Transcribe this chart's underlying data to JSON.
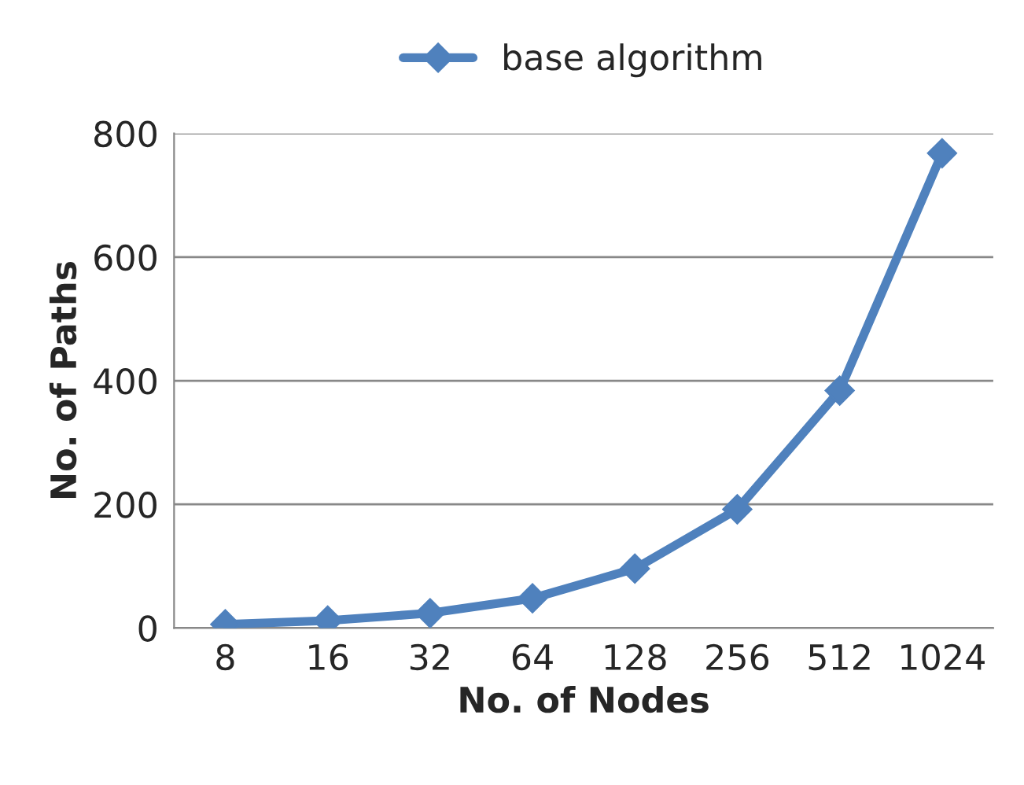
{
  "chart_data": {
    "type": "line",
    "xlabel": "No. of Nodes",
    "ylabel": "No. of Paths",
    "categories": [
      "8",
      "16",
      "32",
      "64",
      "128",
      "256",
      "512",
      "1024"
    ],
    "series": [
      {
        "name": "base algorithm",
        "color": "#4f81bd",
        "values": [
          6,
          12,
          24,
          48,
          96,
          192,
          384,
          768
        ]
      }
    ],
    "ylim": [
      0,
      800
    ],
    "yticks": [
      0,
      200,
      400,
      600,
      800
    ],
    "grid": "y",
    "legend": "top",
    "marker": "diamond",
    "line_style": "solid"
  }
}
